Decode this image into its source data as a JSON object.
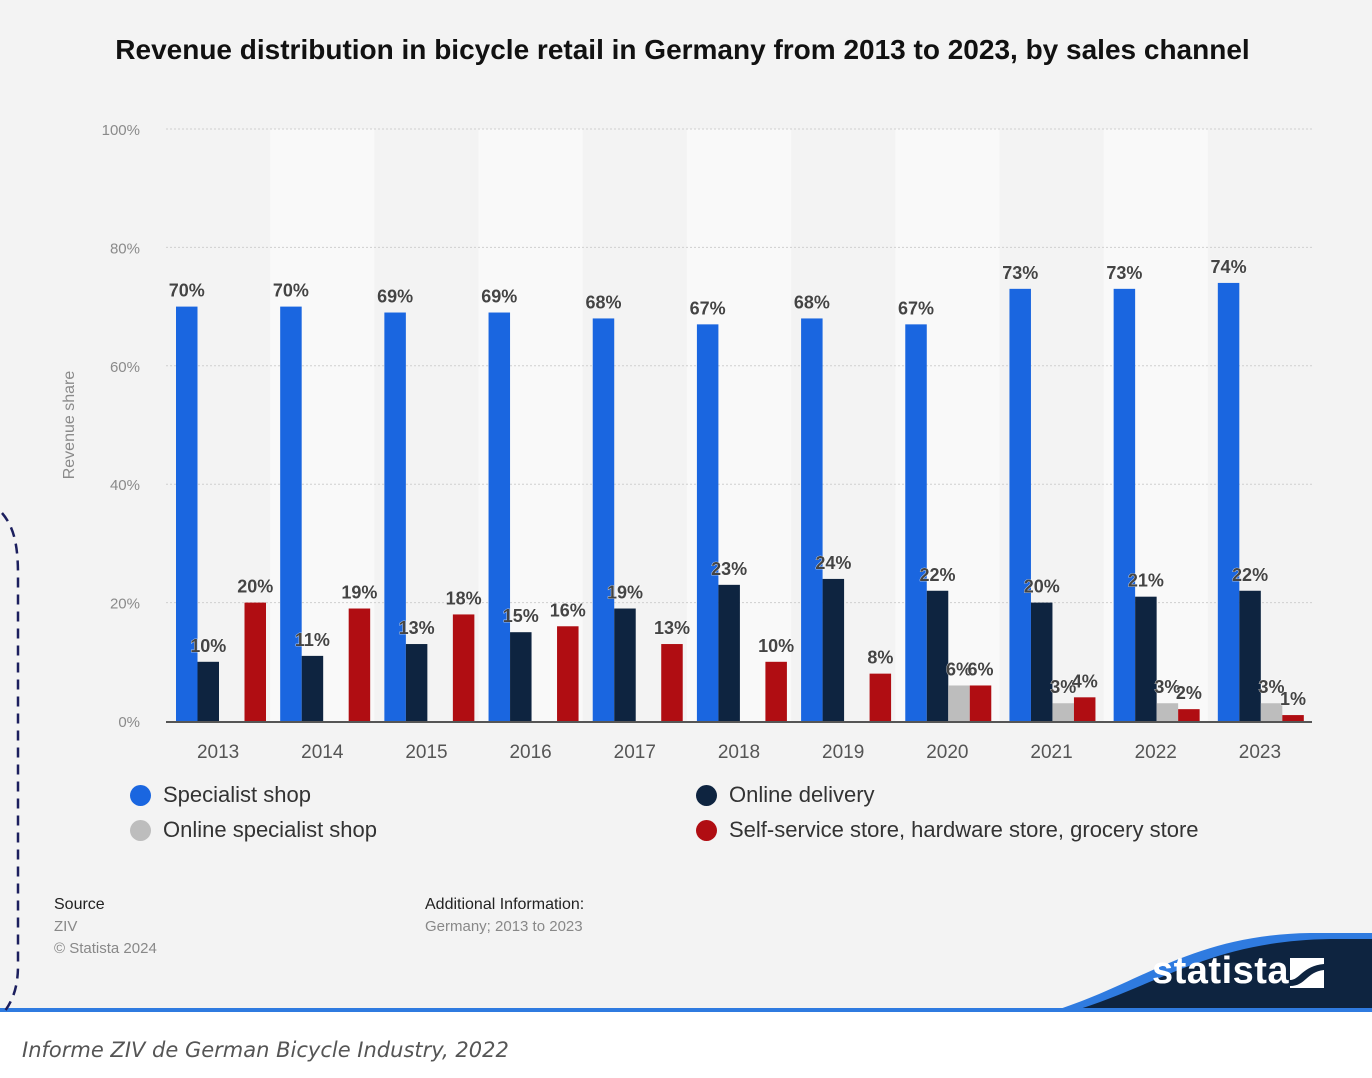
{
  "chart_data": {
    "type": "bar",
    "title": "Revenue distribution in bicycle retail in Germany from 2013 to 2023, by sales channel",
    "xlabel": "",
    "ylabel": "Revenue share",
    "ylim": [
      0,
      100
    ],
    "yticks": [
      "0%",
      "20%",
      "40%",
      "60%",
      "80%",
      "100%"
    ],
    "grid": true,
    "legend_position": "bottom",
    "categories": [
      "2013",
      "2014",
      "2015",
      "2016",
      "2017",
      "2018",
      "2019",
      "2020",
      "2021",
      "2022",
      "2023"
    ],
    "series": [
      {
        "name": "Specialist shop",
        "color": "#1a66e0",
        "values": [
          70,
          70,
          69,
          69,
          68,
          67,
          68,
          67,
          73,
          73,
          74
        ]
      },
      {
        "name": "Online delivery",
        "color": "#0e2440",
        "values": [
          10,
          11,
          13,
          15,
          19,
          23,
          24,
          22,
          20,
          21,
          22
        ]
      },
      {
        "name": "Online specialist shop",
        "color": "#bdbdbd",
        "values": [
          null,
          null,
          null,
          null,
          null,
          null,
          null,
          6,
          3,
          3,
          3
        ]
      },
      {
        "name": "Self-service store, hardware store, grocery store",
        "color": "#b00d12",
        "values": [
          20,
          19,
          18,
          16,
          13,
          10,
          8,
          6,
          4,
          2,
          1
        ]
      }
    ]
  },
  "legend": {
    "items": [
      {
        "label": "Specialist shop",
        "color": "#1a66e0"
      },
      {
        "label": "Online specialist shop",
        "color": "#bdbdbd"
      },
      {
        "label": "Online delivery",
        "color": "#0e2440"
      },
      {
        "label": "Self-service store, hardware store, grocery store",
        "color": "#b00d12"
      }
    ]
  },
  "footer": {
    "source_heading": "Source",
    "source": "ZIV",
    "copyright": "© Statista 2024",
    "info_heading": "Additional Information:",
    "info": "Germany; 2013 to 2023"
  },
  "brand": {
    "name": "statista"
  },
  "caption": "Informe ZIV de German Bicycle Industry, 2022"
}
